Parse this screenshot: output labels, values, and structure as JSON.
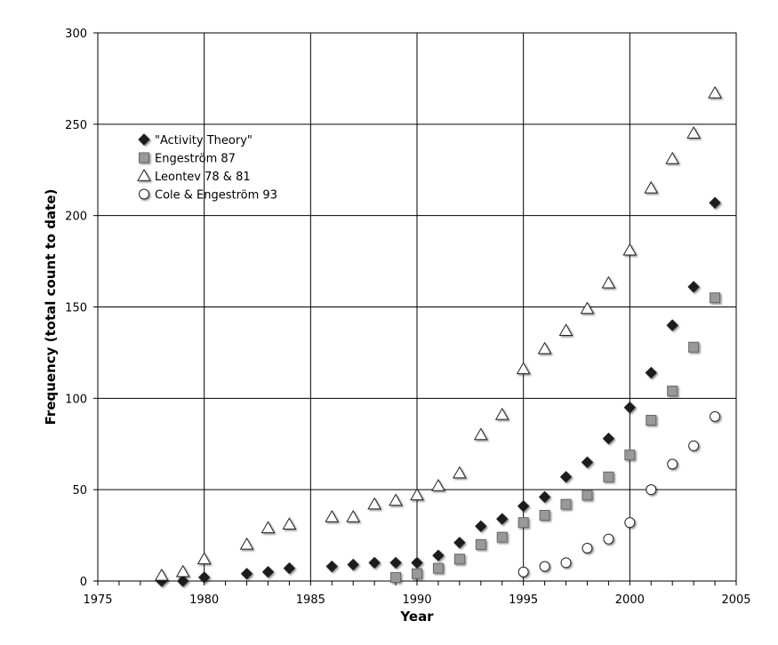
{
  "chart_data": {
    "type": "scatter",
    "title": "",
    "xlabel": "Year",
    "ylabel": "Frequency (total count to date)",
    "xlim": [
      1975,
      2005
    ],
    "ylim": [
      0,
      300
    ],
    "xticks": [
      1975,
      1980,
      1985,
      1990,
      1995,
      2000,
      2005
    ],
    "yticks": [
      0,
      50,
      100,
      150,
      200,
      250,
      300
    ],
    "grid": {
      "vertical": true,
      "horizontal": true
    },
    "legend": "upper-left",
    "series": [
      {
        "name": "\"Activity Theory\"",
        "marker": "diamond",
        "color": "#1a1a1a",
        "points": [
          [
            1978,
            0
          ],
          [
            1979,
            0
          ],
          [
            1980,
            2
          ],
          [
            1982,
            4
          ],
          [
            1983,
            5
          ],
          [
            1984,
            7
          ],
          [
            1986,
            8
          ],
          [
            1987,
            9
          ],
          [
            1988,
            10
          ],
          [
            1989,
            10
          ],
          [
            1990,
            10
          ],
          [
            1991,
            14
          ],
          [
            1992,
            21
          ],
          [
            1993,
            30
          ],
          [
            1994,
            34
          ],
          [
            1995,
            41
          ],
          [
            1996,
            46
          ],
          [
            1997,
            57
          ],
          [
            1998,
            65
          ],
          [
            1999,
            78
          ],
          [
            2000,
            95
          ],
          [
            2001,
            114
          ],
          [
            2002,
            140
          ],
          [
            2003,
            161
          ],
          [
            2004,
            207
          ]
        ]
      },
      {
        "name": "Engeström 87",
        "marker": "square",
        "color": "#999999",
        "points": [
          [
            1989,
            2
          ],
          [
            1990,
            4
          ],
          [
            1991,
            7
          ],
          [
            1992,
            12
          ],
          [
            1993,
            20
          ],
          [
            1994,
            24
          ],
          [
            1995,
            32
          ],
          [
            1996,
            36
          ],
          [
            1997,
            42
          ],
          [
            1998,
            47
          ],
          [
            1999,
            57
          ],
          [
            2000,
            69
          ],
          [
            2001,
            88
          ],
          [
            2002,
            104
          ],
          [
            2003,
            128
          ],
          [
            2004,
            155
          ]
        ]
      },
      {
        "name": "Leontev 78 & 81",
        "marker": "triangle",
        "color": "#ffffff",
        "points": [
          [
            1978,
            3
          ],
          [
            1979,
            5
          ],
          [
            1980,
            12
          ],
          [
            1982,
            20
          ],
          [
            1983,
            29
          ],
          [
            1984,
            31
          ],
          [
            1986,
            35
          ],
          [
            1987,
            35
          ],
          [
            1988,
            42
          ],
          [
            1989,
            44
          ],
          [
            1990,
            47
          ],
          [
            1991,
            52
          ],
          [
            1992,
            59
          ],
          [
            1993,
            80
          ],
          [
            1994,
            91
          ],
          [
            1995,
            116
          ],
          [
            1996,
            127
          ],
          [
            1997,
            137
          ],
          [
            1998,
            149
          ],
          [
            1999,
            163
          ],
          [
            2000,
            181
          ],
          [
            2001,
            215
          ],
          [
            2002,
            231
          ],
          [
            2003,
            245
          ],
          [
            2004,
            267
          ]
        ]
      },
      {
        "name": "Cole & Engeström 93",
        "marker": "circle",
        "color": "#ffffff",
        "points": [
          [
            1995,
            5
          ],
          [
            1996,
            8
          ],
          [
            1997,
            10
          ],
          [
            1998,
            18
          ],
          [
            1999,
            23
          ],
          [
            2000,
            32
          ],
          [
            2001,
            50
          ],
          [
            2002,
            64
          ],
          [
            2003,
            74
          ],
          [
            2004,
            90
          ]
        ]
      }
    ]
  }
}
